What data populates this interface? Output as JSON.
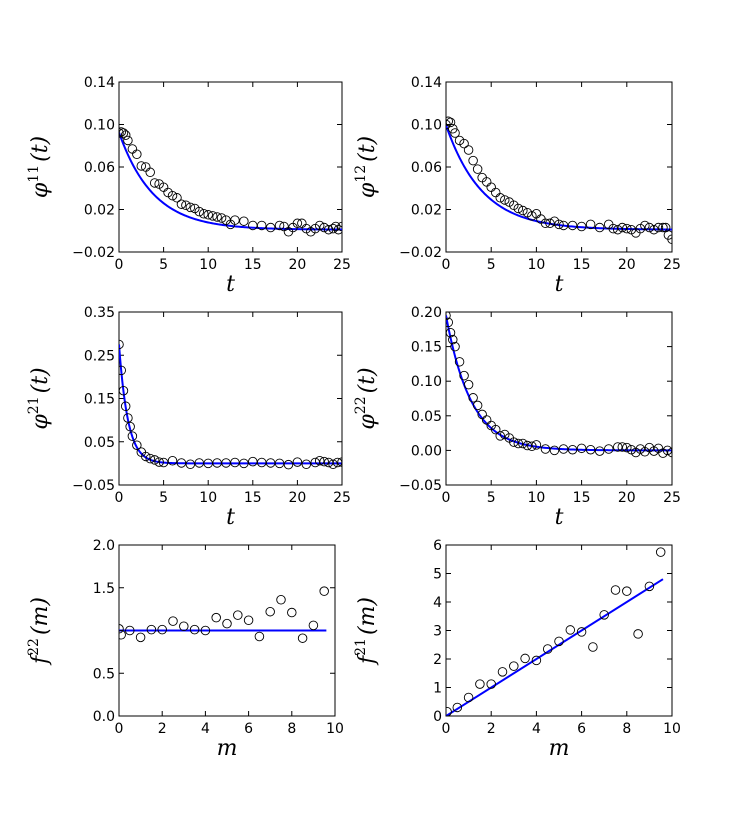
{
  "chart_data": [
    {
      "type": "scatter",
      "id": "phi11",
      "xlabel": "t",
      "ylabel_symbol": "φ",
      "ylabel_sup": "11",
      "ylabel_arg": "(t)",
      "xlim": [
        0,
        25
      ],
      "ylim": [
        -0.02,
        0.14
      ],
      "xticks": [
        0,
        5,
        10,
        15,
        20,
        25
      ],
      "xtick_labels": [
        "0",
        "5",
        "10",
        "15",
        "20",
        "25"
      ],
      "yticks": [
        -0.02,
        0.02,
        0.06,
        0.1,
        0.14
      ],
      "ytick_labels": [
        "−0.02",
        "0.02",
        "0.06",
        "0.10",
        "0.14"
      ],
      "series": [
        {
          "name": "data",
          "kind": "markers",
          "x": [
            0.0,
            0.25,
            0.5,
            0.75,
            1.0,
            1.5,
            2.0,
            2.5,
            3.0,
            3.5,
            4.0,
            4.5,
            5.0,
            5.5,
            6.0,
            6.5,
            7.0,
            7.5,
            8.0,
            8.5,
            9.0,
            9.5,
            10.0,
            10.5,
            11.0,
            11.5,
            12.0,
            12.5,
            13.0,
            14.0,
            15.0,
            16.0,
            17.0,
            18.0,
            18.5,
            19.0,
            19.5,
            20.0,
            20.5,
            21.0,
            21.5,
            22.0,
            22.5,
            23.0,
            23.5,
            24.0,
            24.3,
            24.6,
            25.0
          ],
          "y": [
            0.092,
            0.093,
            0.092,
            0.09,
            0.085,
            0.077,
            0.072,
            0.061,
            0.06,
            0.055,
            0.045,
            0.044,
            0.041,
            0.036,
            0.033,
            0.031,
            0.025,
            0.024,
            0.022,
            0.021,
            0.018,
            0.016,
            0.015,
            0.014,
            0.013,
            0.012,
            0.01,
            0.006,
            0.01,
            0.009,
            0.005,
            0.005,
            0.003,
            0.005,
            0.004,
            -0.001,
            0.003,
            0.007,
            0.007,
            0.002,
            -0.001,
            0.002,
            0.005,
            0.003,
            0.001,
            0.002,
            0.004,
            0.001,
            0.004
          ]
        },
        {
          "name": "fit",
          "kind": "exp",
          "a": 0.0915,
          "k": 0.26,
          "c": 0.001
        }
      ]
    },
    {
      "type": "scatter",
      "id": "phi12",
      "xlabel": "t",
      "ylabel_symbol": "φ",
      "ylabel_sup": "12",
      "ylabel_arg": "(t)",
      "xlim": [
        0,
        25
      ],
      "ylim": [
        -0.02,
        0.14
      ],
      "xticks": [
        0,
        5,
        10,
        15,
        20,
        25
      ],
      "xtick_labels": [
        "0",
        "5",
        "10",
        "15",
        "20",
        "25"
      ],
      "yticks": [
        -0.02,
        0.02,
        0.06,
        0.1,
        0.14
      ],
      "ytick_labels": [
        "−0.02",
        "0.02",
        "0.06",
        "0.10",
        "0.14"
      ],
      "series": [
        {
          "name": "data",
          "kind": "markers",
          "x": [
            0.0,
            0.25,
            0.5,
            0.75,
            1.0,
            1.5,
            2.0,
            2.5,
            3.0,
            3.5,
            4.0,
            4.5,
            5.0,
            5.5,
            6.0,
            6.5,
            7.0,
            7.5,
            8.0,
            8.5,
            9.0,
            9.5,
            10.0,
            10.5,
            11.0,
            11.5,
            12.0,
            12.5,
            13.0,
            14.0,
            15.0,
            16.0,
            17.0,
            18.0,
            18.5,
            19.0,
            19.5,
            20.0,
            20.5,
            21.0,
            21.5,
            22.0,
            22.5,
            23.0,
            23.5,
            24.0,
            24.3,
            24.6,
            25.0
          ],
          "y": [
            0.1,
            0.103,
            0.102,
            0.096,
            0.092,
            0.085,
            0.082,
            0.076,
            0.066,
            0.058,
            0.05,
            0.046,
            0.041,
            0.036,
            0.031,
            0.029,
            0.027,
            0.024,
            0.021,
            0.019,
            0.017,
            0.014,
            0.016,
            0.011,
            0.007,
            0.007,
            0.009,
            0.006,
            0.005,
            0.005,
            0.004,
            0.006,
            0.003,
            0.006,
            0.002,
            0.001,
            0.003,
            0.002,
            0.001,
            -0.002,
            0.002,
            0.005,
            0.003,
            0.001,
            0.003,
            0.003,
            0.003,
            -0.004,
            -0.008
          ]
        },
        {
          "name": "fit",
          "kind": "exp",
          "a": 0.0985,
          "k": 0.25,
          "c": 0.001
        }
      ]
    },
    {
      "type": "scatter",
      "id": "phi21",
      "xlabel": "t",
      "ylabel_symbol": "φ",
      "ylabel_sup": "21",
      "ylabel_arg": "(t)",
      "xlim": [
        0,
        25
      ],
      "ylim": [
        -0.05,
        0.35
      ],
      "xticks": [
        0,
        5,
        10,
        15,
        20,
        25
      ],
      "xtick_labels": [
        "0",
        "5",
        "10",
        "15",
        "20",
        "25"
      ],
      "yticks": [
        -0.05,
        0.05,
        0.15,
        0.25,
        0.35
      ],
      "ytick_labels": [
        "−0.05",
        "0.05",
        "0.15",
        "0.25",
        "0.35"
      ],
      "series": [
        {
          "name": "data",
          "kind": "markers",
          "x": [
            0.0,
            0.25,
            0.5,
            0.75,
            1.0,
            1.25,
            1.5,
            2.0,
            2.5,
            3.0,
            3.5,
            4.0,
            4.5,
            5.0,
            6.0,
            7.0,
            8.0,
            9.0,
            10.0,
            11.0,
            12.0,
            13.0,
            14.0,
            15.0,
            16.0,
            17.0,
            18.0,
            19.0,
            20.0,
            21.0,
            22.0,
            22.5,
            23.0,
            23.5,
            24.0,
            24.5,
            25.0
          ],
          "y": [
            0.275,
            0.215,
            0.168,
            0.132,
            0.105,
            0.085,
            0.063,
            0.042,
            0.026,
            0.016,
            0.011,
            0.008,
            0.003,
            0.002,
            0.006,
            0.001,
            -0.002,
            0.001,
            0.0,
            0.001,
            0.001,
            0.002,
            0.0,
            0.004,
            0.002,
            0.001,
            0.0,
            -0.003,
            0.003,
            -0.002,
            0.002,
            0.006,
            0.004,
            0.002,
            -0.002,
            0.002,
            0.003
          ]
        },
        {
          "name": "fit",
          "kind": "exp",
          "a": 0.275,
          "k": 1.0,
          "c": 0.0
        }
      ]
    },
    {
      "type": "scatter",
      "id": "phi22",
      "xlabel": "t",
      "ylabel_symbol": "φ",
      "ylabel_sup": "22",
      "ylabel_arg": "(t)",
      "xlim": [
        0,
        25
      ],
      "ylim": [
        -0.05,
        0.2
      ],
      "xticks": [
        0,
        5,
        10,
        15,
        20,
        25
      ],
      "xtick_labels": [
        "0",
        "5",
        "10",
        "15",
        "20",
        "25"
      ],
      "yticks": [
        -0.05,
        0.0,
        0.05,
        0.1,
        0.15,
        0.2
      ],
      "ytick_labels": [
        "−0.05",
        "0.00",
        "0.05",
        "0.10",
        "0.15",
        "0.20"
      ],
      "series": [
        {
          "name": "data",
          "kind": "markers",
          "x": [
            0.0,
            0.25,
            0.5,
            0.75,
            1.0,
            1.5,
            2.0,
            2.5,
            3.0,
            3.5,
            4.0,
            4.5,
            5.0,
            5.5,
            6.0,
            6.5,
            7.0,
            7.5,
            8.0,
            8.5,
            9.0,
            9.5,
            10.0,
            11.0,
            12.0,
            13.0,
            14.0,
            15.0,
            16.0,
            17.0,
            18.0,
            19.0,
            19.5,
            20.0,
            20.5,
            21.0,
            21.5,
            22.0,
            22.5,
            23.0,
            23.5,
            24.0,
            24.5,
            25.0
          ],
          "y": [
            0.195,
            0.185,
            0.17,
            0.16,
            0.15,
            0.128,
            0.108,
            0.095,
            0.076,
            0.065,
            0.052,
            0.044,
            0.036,
            0.03,
            0.021,
            0.023,
            0.018,
            0.012,
            0.01,
            0.01,
            0.007,
            0.006,
            0.008,
            0.002,
            0.0,
            0.002,
            0.001,
            0.003,
            0.001,
            -0.001,
            0.002,
            0.005,
            0.005,
            0.004,
            0.001,
            -0.003,
            0.002,
            -0.002,
            0.004,
            -0.001,
            0.003,
            -0.004,
            0.0,
            -0.003
          ]
        },
        {
          "name": "fit",
          "kind": "exp",
          "a": 0.195,
          "k": 0.36,
          "c": 0.0
        }
      ]
    },
    {
      "type": "scatter",
      "id": "f22",
      "xlabel": "m",
      "ylabel_symbol": "f",
      "ylabel_sup": "22",
      "ylabel_arg": "(m)",
      "xlim": [
        0,
        10
      ],
      "ylim": [
        0.0,
        2.0
      ],
      "xticks": [
        0,
        2,
        4,
        6,
        8,
        10
      ],
      "xtick_labels": [
        "0",
        "2",
        "4",
        "6",
        "8",
        "10"
      ],
      "yticks": [
        0.0,
        0.5,
        1.5,
        2.0
      ],
      "ytick_labels": [
        "0.0",
        "0.5",
        "1.5",
        "2.0"
      ],
      "series": [
        {
          "name": "data",
          "kind": "markers",
          "x": [
            0.0,
            0.1,
            0.5,
            1.0,
            1.5,
            2.0,
            2.5,
            3.0,
            3.5,
            4.0,
            4.5,
            5.0,
            5.5,
            6.0,
            6.5,
            7.0,
            7.5,
            8.0,
            8.5,
            9.0,
            9.5
          ],
          "y": [
            1.02,
            0.95,
            1.0,
            0.92,
            1.01,
            1.01,
            1.11,
            1.05,
            1.01,
            1.0,
            1.15,
            1.08,
            1.18,
            1.12,
            0.93,
            1.22,
            1.36,
            1.21,
            0.91,
            1.06,
            1.46
          ]
        },
        {
          "name": "fit",
          "kind": "line",
          "x": [
            0.0,
            9.6
          ],
          "y": [
            1.0,
            1.0
          ]
        }
      ]
    },
    {
      "type": "scatter",
      "id": "f21",
      "xlabel": "m",
      "ylabel_symbol": "f",
      "ylabel_sup": "21",
      "ylabel_arg": "(m)",
      "xlim": [
        0,
        10
      ],
      "ylim": [
        0,
        6
      ],
      "xticks": [
        0,
        2,
        4,
        6,
        8,
        10
      ],
      "xtick_labels": [
        "0",
        "2",
        "4",
        "6",
        "8",
        "10"
      ],
      "yticks": [
        0,
        1,
        2,
        3,
        4,
        5,
        6
      ],
      "ytick_labels": [
        "0",
        "1",
        "2",
        "3",
        "4",
        "5",
        "6"
      ],
      "series": [
        {
          "name": "data",
          "kind": "markers",
          "x": [
            0.05,
            0.5,
            1.0,
            1.5,
            2.0,
            2.5,
            3.0,
            3.5,
            4.0,
            4.5,
            5.0,
            5.5,
            6.0,
            6.5,
            7.0,
            7.5,
            8.0,
            8.5,
            9.0,
            9.5
          ],
          "y": [
            0.15,
            0.3,
            0.65,
            1.12,
            1.12,
            1.55,
            1.75,
            2.02,
            1.95,
            2.35,
            2.62,
            3.02,
            2.95,
            2.42,
            3.55,
            4.42,
            4.38,
            2.88,
            4.55,
            5.75
          ]
        },
        {
          "name": "fit",
          "kind": "line",
          "x": [
            0.0,
            9.6
          ],
          "y": [
            0.0,
            4.8
          ]
        }
      ]
    }
  ]
}
